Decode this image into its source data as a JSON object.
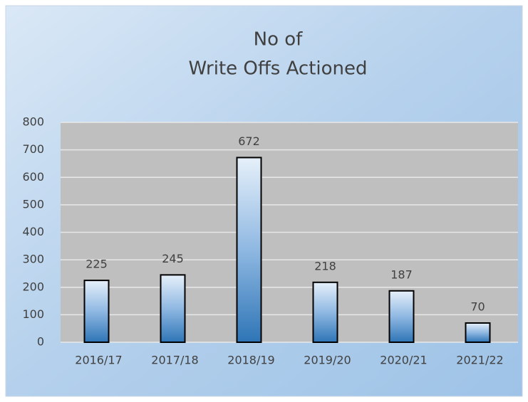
{
  "chart_data": {
    "type": "bar",
    "title": [
      "No of",
      "Write Offs Actioned"
    ],
    "categories": [
      "2016/17",
      "2017/18",
      "2018/19",
      "2019/20",
      "2020/21",
      "2021/22"
    ],
    "values": [
      225,
      245,
      672,
      218,
      187,
      70
    ],
    "color": "#2e75b6",
    "ylim": [
      0,
      800
    ],
    "yticks": [
      0,
      100,
      200,
      300,
      400,
      500,
      600,
      700,
      800
    ],
    "grid": true
  }
}
